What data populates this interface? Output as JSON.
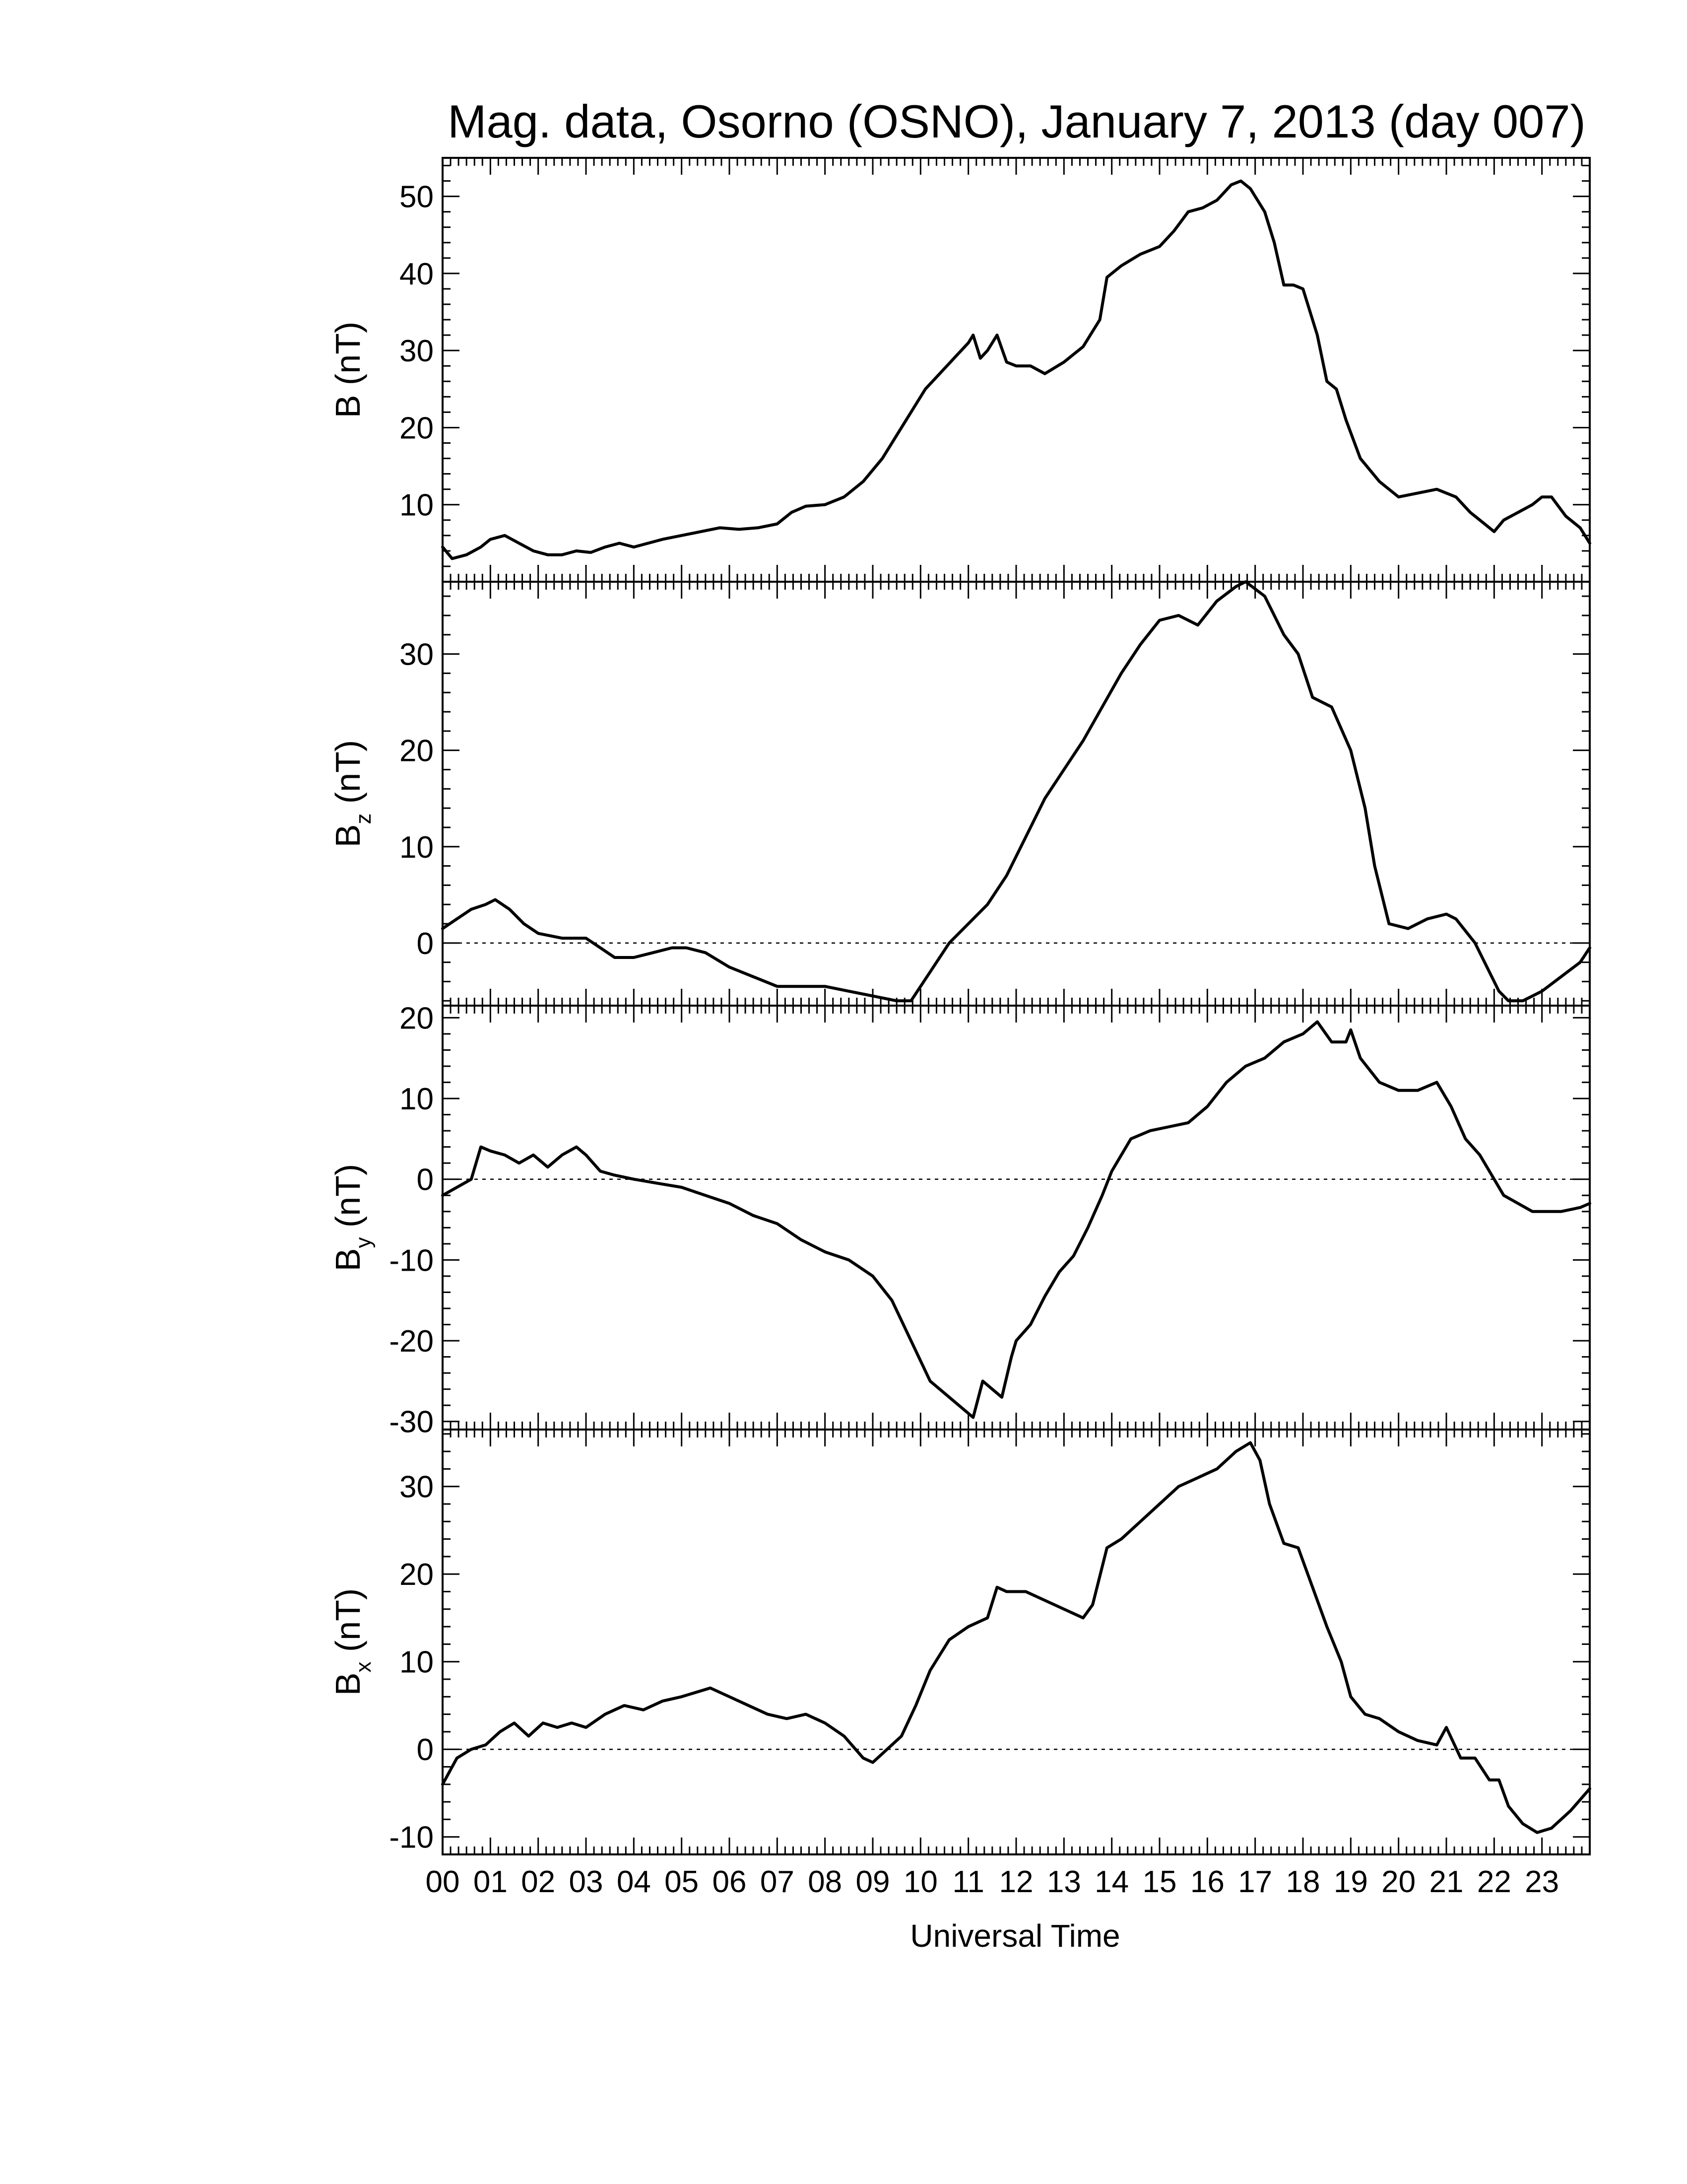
{
  "chart_data": {
    "type": "line",
    "title": "Mag. data, Osorno (OSNO), January 7, 2013 (day 007)",
    "xlabel": "Universal Time",
    "xlim": [
      0,
      24
    ],
    "x_tick_labels": [
      "00",
      "01",
      "02",
      "03",
      "04",
      "05",
      "06",
      "07",
      "08",
      "09",
      "10",
      "11",
      "12",
      "13",
      "14",
      "15",
      "16",
      "17",
      "18",
      "19",
      "20",
      "21",
      "22",
      "23"
    ],
    "panels": [
      {
        "id": "b",
        "ylabel": "B",
        "ylabel_sub": "",
        "ylabel_unit": "(nT)",
        "ylim": [
          0,
          55
        ],
        "yticks": [
          10,
          20,
          30,
          40,
          50
        ],
        "zero_line": false,
        "x": [
          0,
          0.2,
          0.5,
          0.8,
          1.0,
          1.3,
          1.6,
          1.9,
          2.2,
          2.5,
          2.8,
          3.1,
          3.4,
          3.7,
          4.0,
          4.3,
          4.6,
          5.0,
          5.4,
          5.8,
          6.2,
          6.6,
          7.0,
          7.3,
          7.6,
          8.0,
          8.4,
          8.8,
          9.2,
          9.6,
          9.9,
          10.1,
          10.4,
          10.7,
          11.0,
          11.1,
          11.25,
          11.4,
          11.6,
          11.8,
          12.0,
          12.3,
          12.6,
          13.0,
          13.4,
          13.75,
          13.9,
          14.2,
          14.6,
          15.0,
          15.3,
          15.6,
          15.9,
          16.2,
          16.5,
          16.7,
          16.9,
          17.2,
          17.4,
          17.6,
          17.8,
          18.0,
          18.3,
          18.5,
          18.7,
          18.9,
          19.2,
          19.6,
          20.0,
          20.4,
          20.8,
          21.2,
          21.5,
          21.8,
          22.0,
          22.2,
          22.5,
          22.8,
          23.0,
          23.2,
          23.5,
          23.8,
          24.0
        ],
        "y": [
          4.5,
          3.0,
          3.5,
          4.5,
          5.5,
          6.0,
          5.0,
          4.0,
          3.5,
          3.5,
          4.0,
          3.8,
          4.5,
          5.0,
          4.5,
          5.0,
          5.5,
          6.0,
          6.5,
          7.0,
          6.8,
          7.0,
          7.5,
          9.0,
          9.8,
          10.0,
          11.0,
          13.0,
          16.0,
          20.0,
          23.0,
          25.0,
          27.0,
          29.0,
          31.0,
          32.0,
          29.0,
          30.0,
          32.0,
          28.5,
          28.0,
          28.0,
          27.0,
          28.5,
          30.5,
          34.0,
          39.5,
          41.0,
          42.5,
          43.5,
          45.5,
          48.0,
          48.5,
          49.5,
          51.5,
          52.0,
          51.0,
          48.0,
          44.0,
          38.5,
          38.5,
          38.0,
          32.0,
          26.0,
          25.0,
          21.0,
          16.0,
          13.0,
          11.0,
          11.5,
          12.0,
          11.0,
          9.0,
          7.5,
          6.5,
          8.0,
          9.0,
          10.0,
          11.0,
          11.0,
          8.5,
          7.0,
          5.0
        ]
      },
      {
        "id": "bz",
        "ylabel": "B",
        "ylabel_sub": "z",
        "ylabel_unit": "(nT)",
        "ylim": [
          -6.5,
          37.5
        ],
        "yticks": [
          0,
          10,
          20,
          30
        ],
        "zero_line": true,
        "x": [
          0,
          0.3,
          0.6,
          0.9,
          1.1,
          1.4,
          1.7,
          2.0,
          2.5,
          3.0,
          3.3,
          3.6,
          4.0,
          4.4,
          4.8,
          5.1,
          5.5,
          6.0,
          6.5,
          7.0,
          7.5,
          8.0,
          8.5,
          9.0,
          9.5,
          9.8,
          10.2,
          10.6,
          11.0,
          11.4,
          11.8,
          12.2,
          12.6,
          13.0,
          13.4,
          13.8,
          14.2,
          14.6,
          15.0,
          15.4,
          15.8,
          16.2,
          16.6,
          16.8,
          17.2,
          17.6,
          17.9,
          18.2,
          18.6,
          19.0,
          19.3,
          19.5,
          19.8,
          20.2,
          20.6,
          21.0,
          21.2,
          21.6,
          21.9,
          22.1,
          22.3,
          22.6,
          23.0,
          23.4,
          23.8,
          24.0
        ],
        "y": [
          1.5,
          2.5,
          3.5,
          4.0,
          4.5,
          3.5,
          2.0,
          1.0,
          0.5,
          0.5,
          -0.5,
          -1.5,
          -1.5,
          -1.0,
          -0.5,
          -0.5,
          -1.0,
          -2.5,
          -3.5,
          -4.5,
          -4.5,
          -4.5,
          -5.0,
          -5.5,
          -6.0,
          -6.0,
          -3.0,
          0.0,
          2.0,
          4.0,
          7.0,
          11.0,
          15.0,
          18.0,
          21.0,
          24.5,
          28.0,
          31.0,
          33.5,
          34.0,
          33.0,
          35.5,
          37.0,
          37.5,
          36.0,
          32.0,
          30.0,
          25.5,
          24.5,
          20.0,
          14.0,
          8.0,
          2.0,
          1.5,
          2.5,
          3.0,
          2.5,
          0.0,
          -3.0,
          -5.0,
          -6.0,
          -6.0,
          -5.0,
          -3.5,
          -2.0,
          -0.5
        ]
      },
      {
        "id": "by",
        "ylabel": "B",
        "ylabel_sub": "y",
        "ylabel_unit": "(nT)",
        "ylim": [
          -31,
          21.5
        ],
        "yticks": [
          -30,
          -20,
          -10,
          0,
          10,
          20
        ],
        "zero_line": true,
        "x": [
          0,
          0.3,
          0.6,
          0.8,
          1.0,
          1.3,
          1.6,
          1.9,
          2.2,
          2.5,
          2.8,
          3.0,
          3.3,
          3.6,
          4.0,
          4.5,
          5.0,
          5.5,
          6.0,
          6.5,
          7.0,
          7.5,
          8.0,
          8.5,
          9.0,
          9.4,
          9.8,
          10.2,
          10.6,
          11.0,
          11.1,
          11.3,
          11.5,
          11.7,
          11.9,
          12.0,
          12.3,
          12.6,
          12.9,
          13.2,
          13.5,
          13.8,
          14.0,
          14.4,
          14.8,
          15.2,
          15.6,
          16.0,
          16.4,
          16.8,
          17.2,
          17.6,
          18.0,
          18.3,
          18.6,
          18.9,
          19.0,
          19.2,
          19.6,
          20.0,
          20.4,
          20.8,
          21.1,
          21.4,
          21.7,
          22.0,
          22.2,
          22.5,
          22.8,
          23.0,
          23.4,
          23.8,
          24.0
        ],
        "y": [
          -2.0,
          -1.0,
          0.0,
          4.0,
          3.5,
          3.0,
          2.0,
          3.0,
          1.5,
          3.0,
          4.0,
          3.0,
          1.0,
          0.5,
          0.0,
          -0.5,
          -1.0,
          -2.0,
          -3.0,
          -4.5,
          -5.5,
          -7.5,
          -9.0,
          -10.0,
          -12.0,
          -15.0,
          -20.0,
          -25.0,
          -27.0,
          -29.0,
          -29.5,
          -25.0,
          -26.0,
          -27.0,
          -22.0,
          -20.0,
          -18.0,
          -14.5,
          -11.5,
          -9.5,
          -6.0,
          -2.0,
          1.0,
          5.0,
          6.0,
          6.5,
          7.0,
          9.0,
          12.0,
          14.0,
          15.0,
          17.0,
          18.0,
          19.5,
          17.0,
          17.0,
          18.5,
          15.0,
          12.0,
          11.0,
          11.0,
          12.0,
          9.0,
          5.0,
          3.0,
          0.0,
          -2.0,
          -3.0,
          -4.0,
          -4.0,
          -4.0,
          -3.5,
          -3.0
        ]
      },
      {
        "id": "bx",
        "ylabel": "B",
        "ylabel_sub": "x",
        "ylabel_unit": "(nT)",
        "ylim": [
          -12,
          36.5
        ],
        "yticks": [
          -10,
          0,
          10,
          20,
          30
        ],
        "zero_line": true,
        "x": [
          0,
          0.3,
          0.6,
          0.9,
          1.2,
          1.5,
          1.8,
          2.1,
          2.4,
          2.7,
          3.0,
          3.4,
          3.8,
          4.2,
          4.6,
          5.0,
          5.3,
          5.6,
          6.0,
          6.4,
          6.8,
          7.2,
          7.6,
          8.0,
          8.4,
          8.8,
          9.0,
          9.3,
          9.6,
          9.9,
          10.2,
          10.6,
          11.0,
          11.4,
          11.6,
          11.8,
          12.2,
          12.6,
          13.0,
          13.4,
          13.6,
          13.9,
          14.2,
          14.6,
          15.0,
          15.4,
          15.8,
          16.2,
          16.6,
          16.9,
          17.1,
          17.3,
          17.6,
          17.9,
          18.2,
          18.5,
          18.8,
          19.0,
          19.3,
          19.6,
          20.0,
          20.4,
          20.8,
          21.0,
          21.3,
          21.6,
          21.9,
          22.1,
          22.3,
          22.6,
          22.9,
          23.2,
          23.6,
          24.0
        ],
        "y": [
          -4.0,
          -1.0,
          0.0,
          0.5,
          2.0,
          3.0,
          1.5,
          3.0,
          2.5,
          3.0,
          2.5,
          4.0,
          5.0,
          4.5,
          5.5,
          6.0,
          6.5,
          7.0,
          6.0,
          5.0,
          4.0,
          3.5,
          4.0,
          3.0,
          1.5,
          -1.0,
          -1.5,
          0.0,
          1.5,
          5.0,
          9.0,
          12.5,
          14.0,
          15.0,
          18.5,
          18.0,
          18.0,
          17.0,
          16.0,
          15.0,
          16.5,
          23.0,
          24.0,
          26.0,
          28.0,
          30.0,
          31.0,
          32.0,
          34.0,
          35.0,
          33.0,
          28.0,
          23.5,
          23.0,
          18.5,
          14.0,
          10.0,
          6.0,
          4.0,
          3.5,
          2.0,
          1.0,
          0.5,
          2.5,
          -1.0,
          -1.0,
          -3.5,
          -3.5,
          -6.5,
          -8.5,
          -9.5,
          -9.0,
          -7.0,
          -4.5
        ]
      }
    ]
  }
}
